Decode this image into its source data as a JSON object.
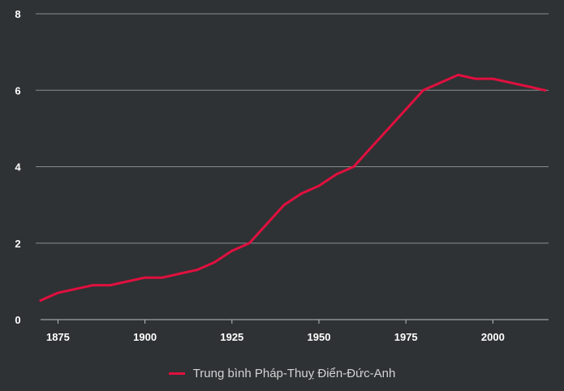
{
  "chart_data": {
    "type": "line",
    "x_ticks": [
      1875,
      1900,
      1925,
      1950,
      1975,
      2000
    ],
    "y_ticks": [
      0,
      2,
      4,
      6,
      8
    ],
    "xlim": [
      1870,
      2016
    ],
    "ylim": [
      0,
      8
    ],
    "grid": "horizontal",
    "legend_position": "bottom",
    "series": [
      {
        "name": "Trung bình Pháp-Thuỵ Điển-Đức-Anh",
        "color": "#e0103f",
        "x": [
          1870,
          1875,
          1880,
          1885,
          1890,
          1895,
          1900,
          1905,
          1910,
          1915,
          1920,
          1925,
          1930,
          1935,
          1940,
          1945,
          1950,
          1955,
          1960,
          1965,
          1970,
          1975,
          1980,
          1985,
          1990,
          1995,
          2000,
          2005,
          2010,
          2015
        ],
        "values": [
          0.5,
          0.7,
          0.8,
          0.9,
          0.9,
          1.0,
          1.1,
          1.1,
          1.2,
          1.3,
          1.5,
          1.8,
          2.0,
          2.5,
          3.0,
          3.3,
          3.5,
          3.8,
          4.0,
          4.5,
          5.0,
          5.5,
          6.0,
          6.2,
          6.4,
          6.3,
          6.3,
          6.2,
          6.1,
          6.0
        ]
      }
    ]
  }
}
